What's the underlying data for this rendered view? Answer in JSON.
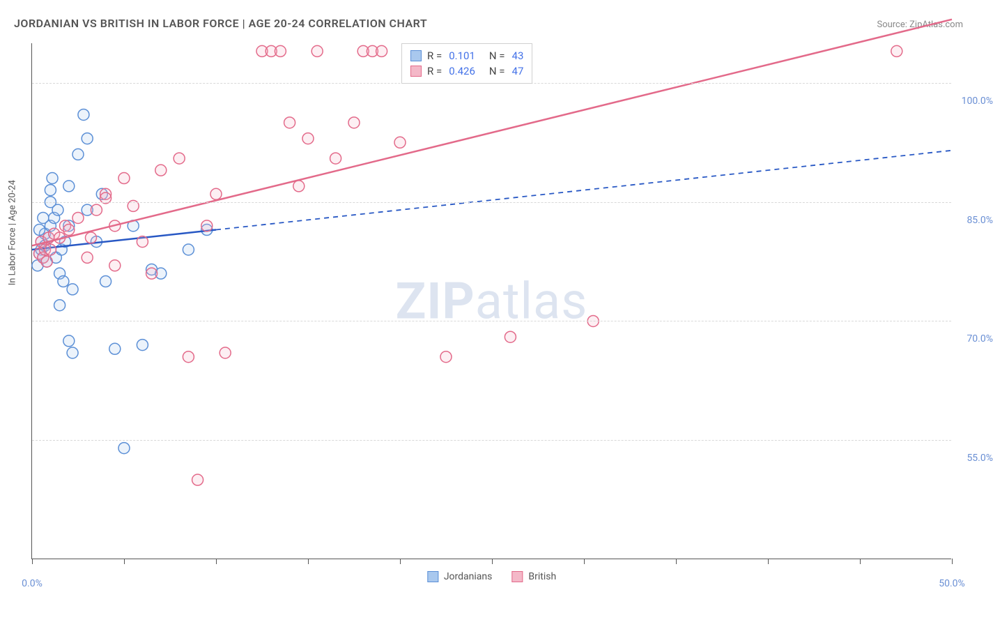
{
  "title": "JORDANIAN VS BRITISH IN LABOR FORCE | AGE 20-24 CORRELATION CHART",
  "source_label": "Source: ZipAtlas.com",
  "y_axis_title": "In Labor Force | Age 20-24",
  "watermark": {
    "zip": "ZIP",
    "atlas": "atlas"
  },
  "chart": {
    "type": "scatter",
    "background_color": "#ffffff",
    "grid_color": "#d8d8d8",
    "axis_color": "#555555",
    "tick_label_color": "#6a8fd4",
    "xlim": [
      0,
      50
    ],
    "ylim": [
      40,
      105
    ],
    "x_ticks": [
      0,
      5,
      10,
      15,
      20,
      25,
      30,
      35,
      40,
      45,
      50
    ],
    "x_tick_labels": {
      "0": "0.0%",
      "50": "50.0%"
    },
    "y_ticks": [
      55,
      70,
      85,
      100
    ],
    "y_tick_labels": {
      "55": "55.0%",
      "70": "70.0%",
      "85": "85.0%",
      "100": "100.0%"
    },
    "marker_radius": 8,
    "marker_stroke_width": 1.5,
    "marker_fill_opacity": 0.22,
    "trend_line_width": 2.5,
    "trend_dash_width": 1.8,
    "series": [
      {
        "name": "Jordanians",
        "color_stroke": "#5b8fd6",
        "color_fill": "#a9c8ee",
        "r_value": "0.101",
        "n_value": "43",
        "trend": {
          "x1": 0,
          "y1": 79,
          "x2": 10,
          "y2": 81.5,
          "ext_x2": 50,
          "ext_y2": 91.5,
          "solid_until_x": 10
        },
        "points": [
          [
            0.3,
            77
          ],
          [
            0.4,
            78.5
          ],
          [
            0.5,
            79
          ],
          [
            0.5,
            80
          ],
          [
            0.6,
            78
          ],
          [
            0.7,
            79.5
          ],
          [
            0.7,
            81
          ],
          [
            0.8,
            77.5
          ],
          [
            0.9,
            80.5
          ],
          [
            1.0,
            82
          ],
          [
            1.0,
            85
          ],
          [
            1.0,
            86.5
          ],
          [
            1.1,
            88
          ],
          [
            1.2,
            83
          ],
          [
            1.3,
            78
          ],
          [
            1.4,
            84
          ],
          [
            1.5,
            72
          ],
          [
            1.5,
            76
          ],
          [
            1.6,
            79
          ],
          [
            1.7,
            75
          ],
          [
            1.8,
            80
          ],
          [
            2.0,
            67.5
          ],
          [
            2.0,
            82
          ],
          [
            2.0,
            87
          ],
          [
            2.2,
            66
          ],
          [
            2.2,
            74
          ],
          [
            2.5,
            91
          ],
          [
            2.8,
            96
          ],
          [
            3.0,
            84
          ],
          [
            3.0,
            93
          ],
          [
            3.5,
            80
          ],
          [
            3.8,
            86
          ],
          [
            4.0,
            75
          ],
          [
            4.5,
            66.5
          ],
          [
            5.0,
            54
          ],
          [
            5.5,
            82
          ],
          [
            6.0,
            67
          ],
          [
            6.5,
            76.5
          ],
          [
            7.0,
            76
          ],
          [
            8.5,
            79
          ],
          [
            9.5,
            81.5
          ],
          [
            0.4,
            81.5
          ],
          [
            0.6,
            83
          ]
        ]
      },
      {
        "name": "British",
        "color_stroke": "#e36a8a",
        "color_fill": "#f4b8c8",
        "r_value": "0.426",
        "n_value": "47",
        "trend": {
          "x1": 0,
          "y1": 79.5,
          "x2": 50,
          "y2": 108,
          "solid_until_x": 50
        },
        "points": [
          [
            0.4,
            78.5
          ],
          [
            0.5,
            80
          ],
          [
            0.6,
            78
          ],
          [
            0.7,
            79
          ],
          [
            0.8,
            77.5
          ],
          [
            0.9,
            80.5
          ],
          [
            1.0,
            79
          ],
          [
            1.2,
            81
          ],
          [
            1.5,
            80.5
          ],
          [
            1.8,
            82
          ],
          [
            2.0,
            81.5
          ],
          [
            2.5,
            83
          ],
          [
            3.0,
            78
          ],
          [
            3.2,
            80.5
          ],
          [
            3.5,
            84
          ],
          [
            4.0,
            86
          ],
          [
            4.5,
            82
          ],
          [
            4.5,
            77
          ],
          [
            5.0,
            88
          ],
          [
            5.5,
            84.5
          ],
          [
            6.0,
            80
          ],
          [
            6.5,
            76
          ],
          [
            7.0,
            89
          ],
          [
            8.0,
            90.5
          ],
          [
            8.5,
            65.5
          ],
          [
            9.0,
            50
          ],
          [
            9.5,
            82
          ],
          [
            10.0,
            86
          ],
          [
            10.5,
            66
          ],
          [
            12.5,
            104
          ],
          [
            13.0,
            104
          ],
          [
            13.5,
            104
          ],
          [
            14.0,
            95
          ],
          [
            14.5,
            87
          ],
          [
            15.0,
            93
          ],
          [
            15.5,
            104
          ],
          [
            16.5,
            90.5
          ],
          [
            17.5,
            95
          ],
          [
            18.0,
            104
          ],
          [
            18.5,
            104
          ],
          [
            19.0,
            104
          ],
          [
            20.0,
            92.5
          ],
          [
            22.5,
            65.5
          ],
          [
            26.0,
            68
          ],
          [
            30.5,
            70
          ],
          [
            47.0,
            104
          ],
          [
            4.0,
            85.5
          ]
        ]
      }
    ]
  },
  "legend_top": {
    "r_label": "R =",
    "n_label": "N ="
  },
  "legend_bottom": [
    {
      "label": "Jordanians",
      "stroke": "#5b8fd6",
      "fill": "#a9c8ee"
    },
    {
      "label": "British",
      "stroke": "#e36a8a",
      "fill": "#f4b8c8"
    }
  ]
}
